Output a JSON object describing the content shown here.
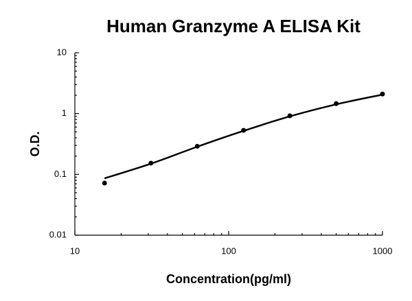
{
  "chart_data": {
    "type": "scatter",
    "title": "Human Granzyme A ELISA Kit",
    "x_label": "Concentration(pg/ml)",
    "y_label": "O.D.",
    "x": [
      15.6,
      31.25,
      62.5,
      125,
      250,
      500,
      1000
    ],
    "series": [
      {
        "mode": "markers",
        "color": "#000000",
        "values": [
          0.072,
          0.153,
          0.29,
          0.53,
          0.92,
          1.46,
          2.1
        ]
      },
      {
        "mode": "line",
        "color": "#000000",
        "values": [
          0.086,
          0.15,
          0.285,
          0.52,
          0.9,
          1.42,
          2.05
        ]
      }
    ],
    "xscale": "log",
    "yscale": "log",
    "xlim": [
      10,
      1000
    ],
    "ylim": [
      0.01,
      10
    ],
    "xticks": [
      10,
      100,
      1000
    ],
    "yticks": [
      0.01,
      0.1,
      1,
      10
    ]
  }
}
